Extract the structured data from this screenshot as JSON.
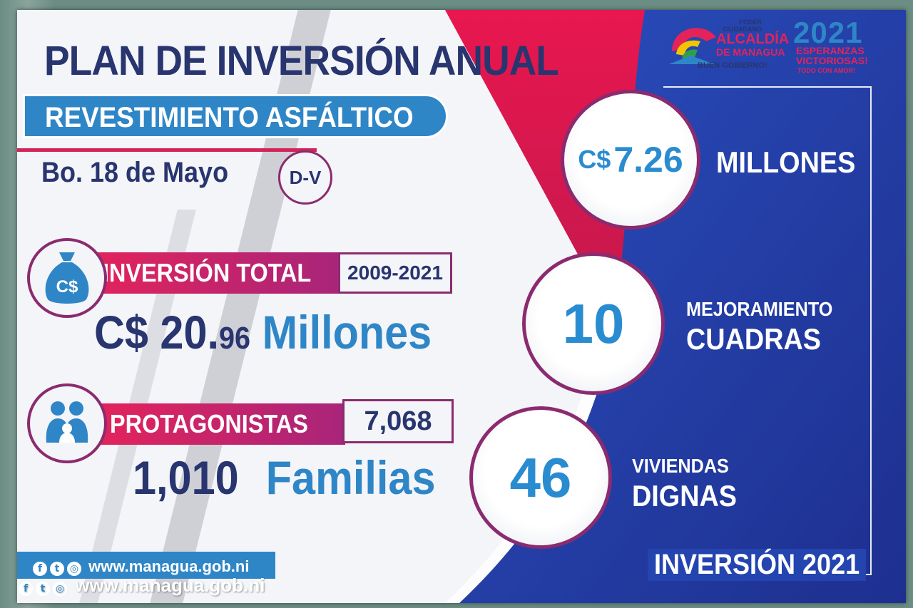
{
  "sign": {
    "title": "PLAN DE INVERSIÓN ANUAL",
    "subtitle": "REVESTIMIENTO ASFÁLTICO",
    "barrio": "Bo. 18 de Mayo",
    "district": "D-V",
    "investment": {
      "label": "INVERSIÓN TOTAL",
      "years": "2009-2021",
      "amount_prefix": "C$ 20.",
      "amount_decimal": "96",
      "amount_unit": "Millones",
      "icon": "money-bag-icon",
      "icon_text": "C$"
    },
    "protagonists": {
      "label": "PROTAGONISTAS",
      "count": "7,068",
      "families_number": "1,010",
      "families_label": "Familias",
      "icon": "family-icon"
    },
    "stats": [
      {
        "value_prefix": "C$",
        "value": "7.26",
        "line1": "",
        "line2": "MILLONES"
      },
      {
        "value_prefix": "",
        "value": "10",
        "line1": "MEJORAMIENTO",
        "line2": "CUADRAS"
      },
      {
        "value_prefix": "",
        "value": "46",
        "line1": "VIVIENDAS",
        "line2": "DIGNAS"
      }
    ],
    "footer_year": "INVERSIÓN 2021",
    "website": "www.managua.gob.ni",
    "website_shadow": "www.managua.gob.ni",
    "logo_alcaldia": {
      "line1": "PODER",
      "line2": "CIUDADANO",
      "line3": "ALCALDÍA",
      "line4": "DE MANAGUA",
      "line5": "BUEN GOBIERNO!"
    },
    "logo_2021": {
      "year": "2021",
      "line1": "ESPERANZAS",
      "line2": "VICTORIOSAS!",
      "line3": "TODO CON AMOR!"
    },
    "colors": {
      "navy": "#28356f",
      "blue": "#2f86c7",
      "magenta": "#e4235b",
      "purple": "#8b2b6f",
      "royal": "#2540a8"
    }
  }
}
